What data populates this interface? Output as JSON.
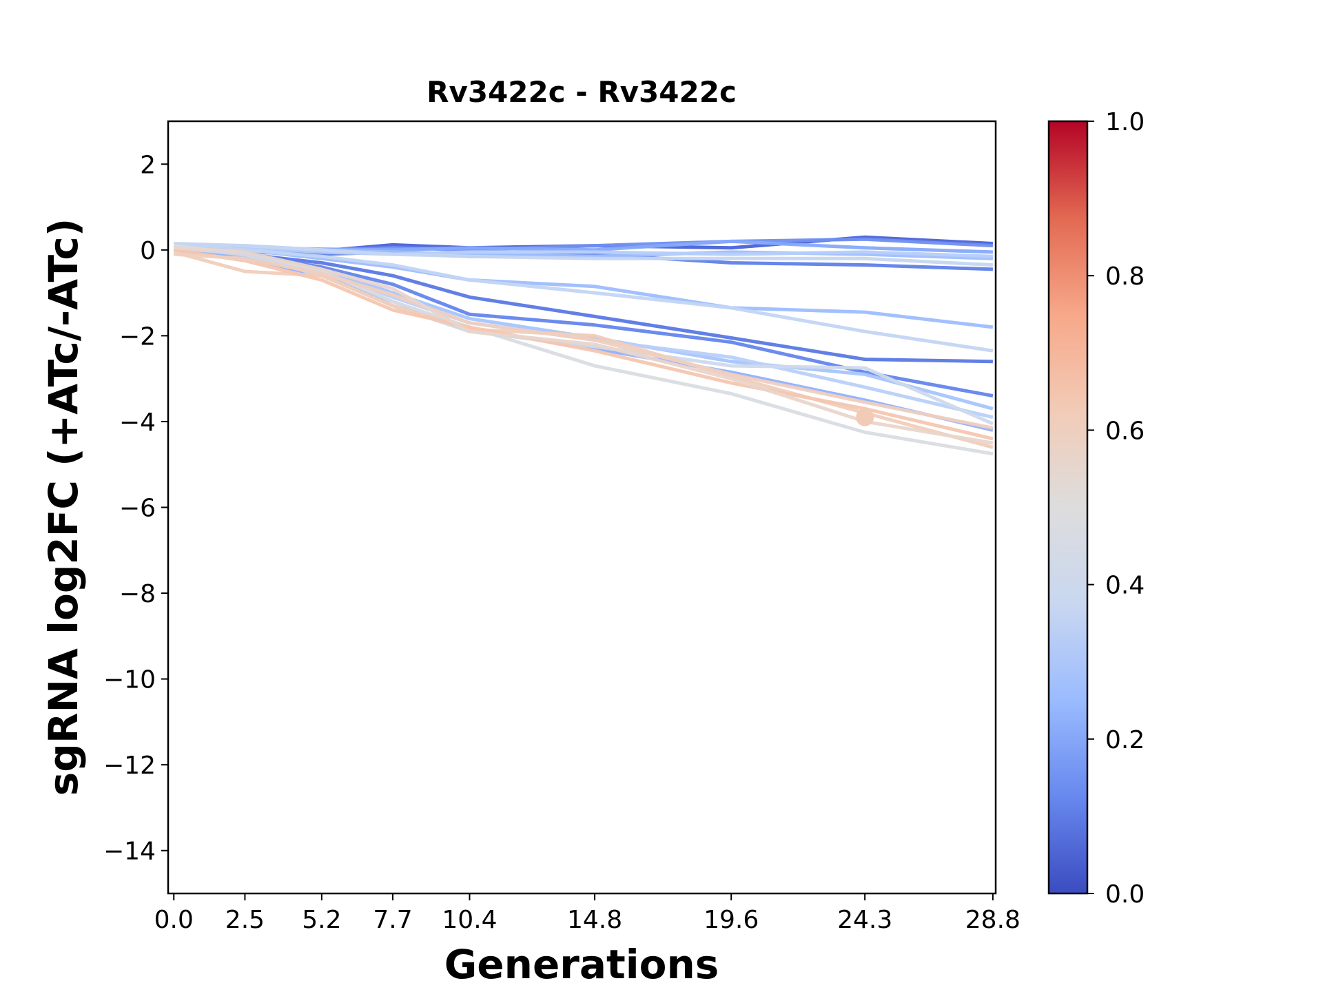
{
  "chart_data": {
    "type": "line",
    "title": "Rv3422c - Rv3422c",
    "xlabel": "Generations",
    "ylabel": "sgRNA log2FC (+ATc/-ATc)",
    "x": [
      0.0,
      2.5,
      5.2,
      7.7,
      10.4,
      14.8,
      19.6,
      24.3,
      28.8
    ],
    "x_tick_labels": [
      "0.0",
      "2.5",
      "5.2",
      "7.7",
      "10.4",
      "14.8",
      "19.6",
      "24.3",
      "28.8"
    ],
    "xlim": [
      -0.2,
      28.9
    ],
    "ylim": [
      -15,
      3
    ],
    "y_ticks": [
      2,
      0,
      -2,
      -4,
      -6,
      -8,
      -10,
      -12,
      -14
    ],
    "y_tick_labels": [
      "2",
      "0",
      "−2",
      "−4",
      "−6",
      "−8",
      "−10",
      "−12",
      "−14"
    ],
    "colorbar": {
      "colormap": "coolwarm",
      "range": [
        0.0,
        1.0
      ],
      "tick_values": [
        0.0,
        0.2,
        0.4,
        0.6,
        0.8,
        1.0
      ],
      "tick_labels": [
        "0.0",
        "0.2",
        "0.4",
        "0.6",
        "0.8",
        "1.0"
      ],
      "stops": [
        "#3b4cc0",
        "#6788ee",
        "#9abbff",
        "#c9d7f0",
        "#dddddd",
        "#f2cbb7",
        "#f7a889",
        "#e26952",
        "#b40426"
      ]
    },
    "marker": {
      "x": 24.3,
      "y": -3.9,
      "color": "#f2cbb7"
    },
    "series": [
      {
        "color": "#4a62d8",
        "values": [
          0.05,
          0.0,
          -0.02,
          0.12,
          0.05,
          0.1,
          0.05,
          0.3,
          0.15
        ]
      },
      {
        "color": "#5f7fe8",
        "values": [
          0.0,
          -0.05,
          -0.1,
          -0.05,
          -0.15,
          -0.1,
          -0.3,
          -0.35,
          -0.45
        ]
      },
      {
        "color": "#6f8ff0",
        "values": [
          0.1,
          0.05,
          0.0,
          0.05,
          0.0,
          0.1,
          0.2,
          0.25,
          0.1
        ]
      },
      {
        "color": "#86a9fb",
        "values": [
          0.0,
          0.05,
          0.02,
          0.0,
          0.05,
          0.0,
          0.2,
          0.05,
          -0.05
        ]
      },
      {
        "color": "#9ebeff",
        "values": [
          0.12,
          0.1,
          0.0,
          -0.05,
          -0.1,
          -0.15,
          -0.05,
          -0.1,
          -0.2
        ]
      },
      {
        "color": "#b5cdfa",
        "values": [
          0.1,
          0.05,
          -0.05,
          -0.1,
          -0.05,
          -0.05,
          -0.1,
          -0.05,
          -0.15
        ]
      },
      {
        "color": "#c6d6f1",
        "values": [
          0.15,
          0.1,
          0.0,
          -0.1,
          -0.15,
          -0.2,
          -0.2,
          -0.2,
          -0.35
        ]
      },
      {
        "color": "#5a78e4",
        "values": [
          0.0,
          -0.1,
          -0.3,
          -0.6,
          -1.1,
          -1.55,
          -2.05,
          -2.55,
          -2.6
        ]
      },
      {
        "color": "#9dbdff",
        "values": [
          0.05,
          0.0,
          -0.2,
          -0.4,
          -0.7,
          -0.85,
          -1.35,
          -1.45,
          -1.8
        ]
      },
      {
        "color": "#c3d5f4",
        "values": [
          0.1,
          0.0,
          -0.15,
          -0.35,
          -0.7,
          -1.0,
          -1.35,
          -1.9,
          -2.35
        ]
      },
      {
        "color": "#6385ec",
        "values": [
          0.0,
          -0.1,
          -0.4,
          -0.8,
          -1.5,
          -1.75,
          -2.15,
          -2.85,
          -3.4
        ]
      },
      {
        "color": "#a7c5fd",
        "values": [
          0.0,
          -0.1,
          -0.45,
          -1.0,
          -1.6,
          -2.05,
          -2.6,
          -2.9,
          -3.7
        ]
      },
      {
        "color": "#b9d0f9",
        "values": [
          0.05,
          -0.15,
          -0.5,
          -1.1,
          -1.7,
          -2.1,
          -2.5,
          -3.2,
          -3.9
        ]
      },
      {
        "color": "#8fb1fe",
        "values": [
          0.0,
          -0.2,
          -0.6,
          -1.2,
          -1.85,
          -2.3,
          -2.85,
          -3.5,
          -4.2
        ]
      },
      {
        "color": "#d9dce1",
        "values": [
          0.1,
          -0.1,
          -0.5,
          -1.2,
          -1.8,
          -2.7,
          -3.35,
          -4.25,
          -4.75
        ]
      },
      {
        "color": "#cdd9ec",
        "values": [
          0.05,
          -0.1,
          -0.6,
          -1.3,
          -1.9,
          -2.25,
          -2.7,
          -2.75,
          -4.05
        ]
      },
      {
        "color": "#f0cdbb",
        "values": [
          -0.05,
          -0.5,
          -0.6,
          -1.3,
          -1.85,
          -2.0,
          -2.95,
          -3.8,
          -4.6
        ]
      },
      {
        "color": "#f4c6af",
        "values": [
          0.0,
          -0.25,
          -0.7,
          -1.4,
          -1.8,
          -2.35,
          -3.1,
          -3.7,
          -4.4
        ]
      },
      {
        "color": "#efcfbf",
        "values": [
          -0.1,
          -0.2,
          -0.55,
          -1.05,
          -1.7,
          -2.1,
          -2.9,
          -3.55,
          -4.15
        ]
      },
      {
        "color": "#e9d5cb",
        "values": [
          0.05,
          -0.05,
          -0.45,
          -0.9,
          -1.9,
          -2.2,
          -3.0,
          -4.0,
          -4.5
        ]
      }
    ]
  }
}
